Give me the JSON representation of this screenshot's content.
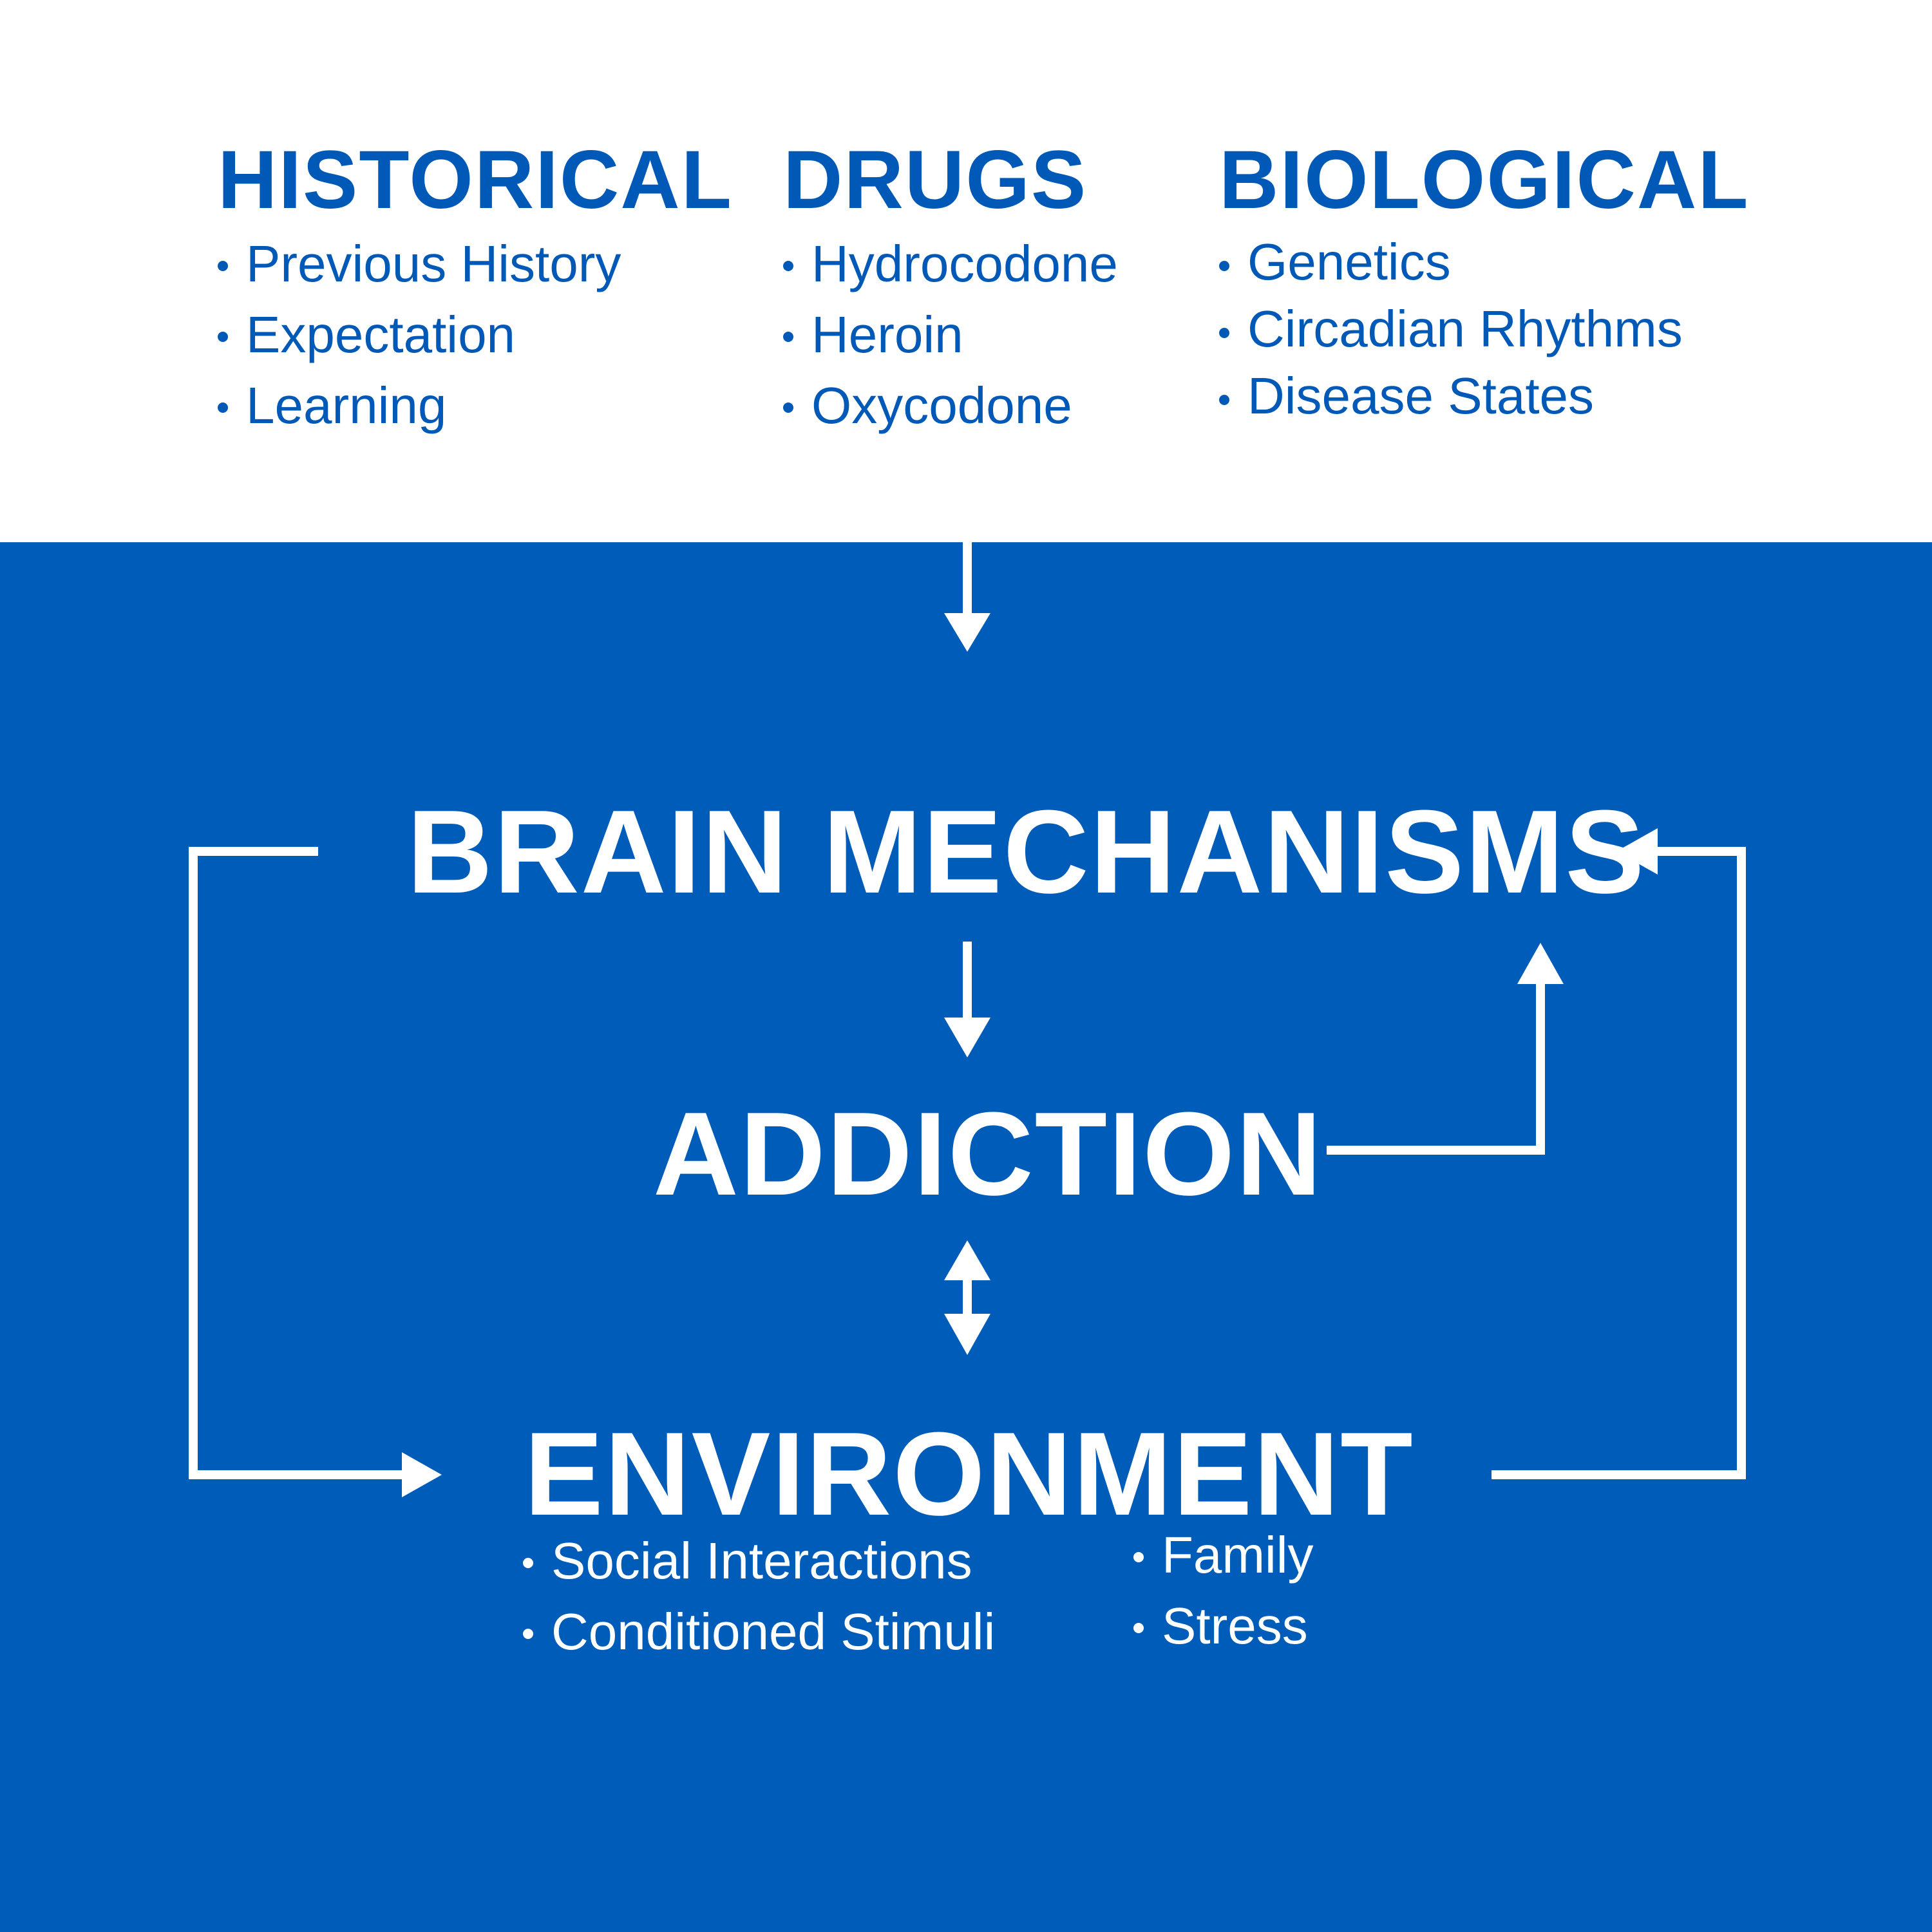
{
  "colors": {
    "blue": "#005cb9",
    "white": "#ffffff",
    "heading_blue": "#0059b7"
  },
  "historical": {
    "heading": "HISTORICAL",
    "items": [
      "Previous History",
      "Expectation",
      "Learning"
    ]
  },
  "drugs": {
    "heading": "DRUGS",
    "items": [
      "Hydrocodone",
      "Heroin",
      "Oxycodone"
    ]
  },
  "biological": {
    "heading": "BIOLOGICAL",
    "items": [
      "Genetics",
      "Circadian Rhythms",
      "Disease States"
    ]
  },
  "brain_mechanisms": "BRAIN MECHANISMS",
  "addiction": "ADDICTION",
  "environment": {
    "heading": "ENVIRONMENT",
    "left_items": [
      "Social Interactions",
      "Conditioned Stimuli"
    ],
    "right_items": [
      "Family",
      "Stress"
    ]
  }
}
